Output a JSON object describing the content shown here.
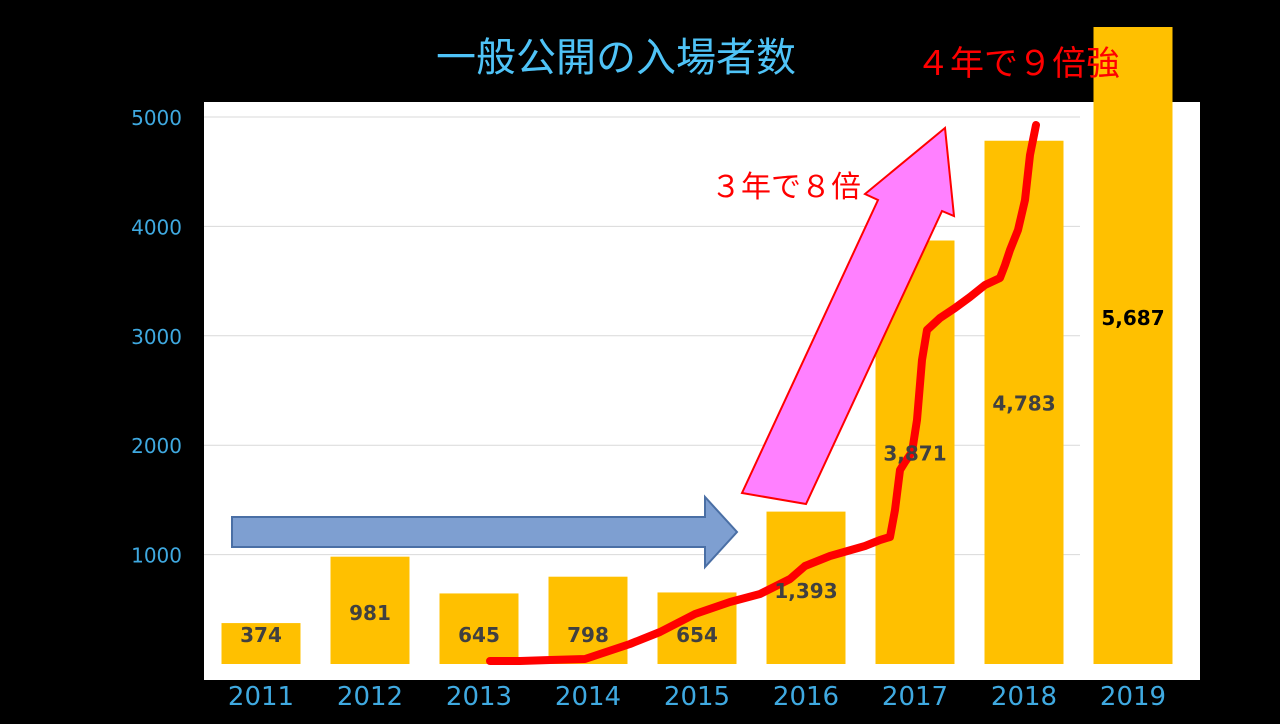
{
  "chart_data": {
    "type": "bar",
    "title": "一般公開の入場者数",
    "categories": [
      "2011",
      "2012",
      "2013",
      "2014",
      "2015",
      "2016",
      "2017",
      "2018",
      "2019"
    ],
    "values": [
      374,
      981,
      645,
      798,
      654,
      1393,
      3871,
      4783,
      5687
    ],
    "value_labels": [
      "374",
      "981",
      "645",
      "798",
      "654",
      "1,393",
      "3,871",
      "4,783",
      "5,687"
    ],
    "ylim": [
      0,
      5000
    ],
    "yticks": [
      1000,
      2000,
      3000,
      4000,
      5000
    ],
    "ytick_labels": [
      "1000",
      "2000",
      "3000",
      "4000",
      "5000"
    ],
    "grid": true,
    "annotations": {
      "growth_3yr": "３年で８倍",
      "growth_4yr": "４年で９倍強"
    },
    "colors": {
      "bar": "#FFC000",
      "axis_text": "#3FA9E0",
      "title": "#4FC3F7",
      "annotation": "#FF0000",
      "trend_line": "#FF0000",
      "blue_arrow": "#7E9FD1",
      "pink_arrow": "#FF80FF"
    }
  }
}
